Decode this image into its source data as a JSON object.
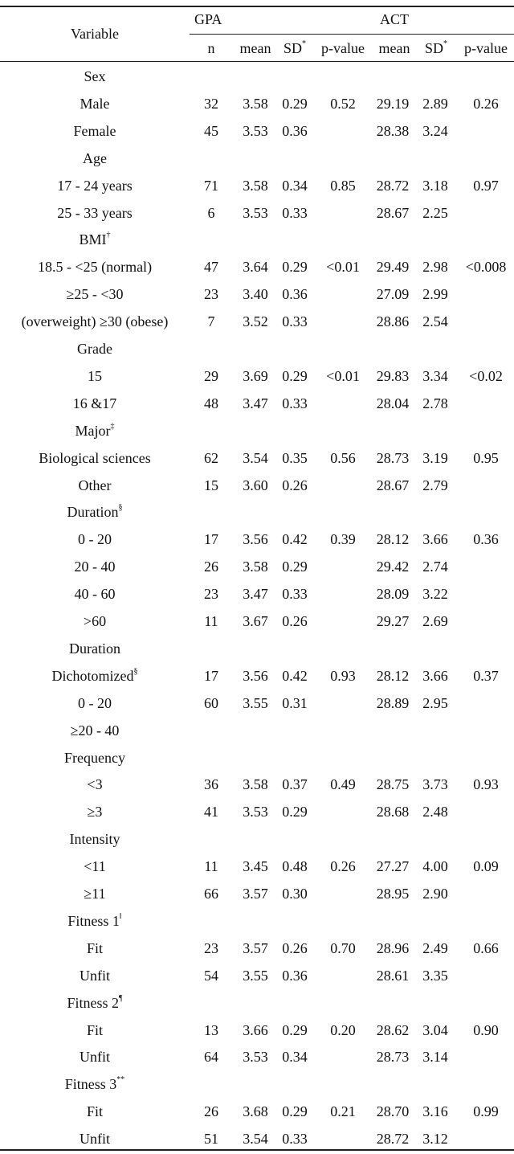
{
  "header": {
    "variable": "Variable",
    "gpa_group": "GPA",
    "act_group": "ACT",
    "n": "n",
    "gpa_mean": "mean",
    "gpa_sd": "SD",
    "gpa_sd_mark": "*",
    "gpa_p": "p-value",
    "act_mean": "mean",
    "act_sd": "SD",
    "act_sd_mark": "*",
    "act_p": "p-value"
  },
  "rows": [
    {
      "label": "Sex",
      "sup": "",
      "n": "",
      "gm": "",
      "gs": "",
      "gp": "",
      "am": "",
      "as": "",
      "ap": ""
    },
    {
      "label": "Male",
      "sup": "",
      "n": "32",
      "gm": "3.58",
      "gs": "0.29",
      "gp": "0.52",
      "am": "29.19",
      "as": "2.89",
      "ap": "0.26"
    },
    {
      "label": "Female",
      "sup": "",
      "n": "45",
      "gm": "3.53",
      "gs": "0.36",
      "gp": "",
      "am": "28.38",
      "as": "3.24",
      "ap": ""
    },
    {
      "label": "Age",
      "sup": "",
      "n": "",
      "gm": "",
      "gs": "",
      "gp": "",
      "am": "",
      "as": "",
      "ap": ""
    },
    {
      "label": "17 - 24 years",
      "sup": "",
      "n": "71",
      "gm": "3.58",
      "gs": "0.34",
      "gp": "0.85",
      "am": "28.72",
      "as": "3.18",
      "ap": "0.97"
    },
    {
      "label": "25 - 33 years",
      "sup": "",
      "n": "6",
      "gm": "3.53",
      "gs": "0.33",
      "gp": "",
      "am": "28.67",
      "as": "2.25",
      "ap": ""
    },
    {
      "label": "BMI",
      "sup": "†",
      "n": "",
      "gm": "",
      "gs": "",
      "gp": "",
      "am": "",
      "as": "",
      "ap": ""
    },
    {
      "label": "18.5 - <25 (normal)",
      "sup": "",
      "n": "47",
      "gm": "3.64",
      "gs": "0.29",
      "gp": "<0.01",
      "am": "29.49",
      "as": "2.98",
      "ap": "<0.008"
    },
    {
      "label": "≥25 - <30",
      "sup": "",
      "n": "23",
      "gm": "3.40",
      "gs": "0.36",
      "gp": "",
      "am": "27.09",
      "as": "2.99",
      "ap": ""
    },
    {
      "label": "(overweight) ≥30 (obese)",
      "sup": "",
      "n": "7",
      "gm": "3.52",
      "gs": "0.33",
      "gp": "",
      "am": "28.86",
      "as": "2.54",
      "ap": ""
    },
    {
      "label": "Grade",
      "sup": "",
      "n": "",
      "gm": "",
      "gs": "",
      "gp": "",
      "am": "",
      "as": "",
      "ap": ""
    },
    {
      "label": "15",
      "sup": "",
      "n": "29",
      "gm": "3.69",
      "gs": "0.29",
      "gp": "<0.01",
      "am": "29.83",
      "as": "3.34",
      "ap": "<0.02"
    },
    {
      "label": "16 &17",
      "sup": "",
      "n": "48",
      "gm": "3.47",
      "gs": "0.33",
      "gp": "",
      "am": "28.04",
      "as": "2.78",
      "ap": ""
    },
    {
      "label": "Major",
      "sup": "‡",
      "n": "",
      "gm": "",
      "gs": "",
      "gp": "",
      "am": "",
      "as": "",
      "ap": ""
    },
    {
      "label": "Biological sciences",
      "sup": "",
      "n": "62",
      "gm": "3.54",
      "gs": "0.35",
      "gp": "0.56",
      "am": "28.73",
      "as": "3.19",
      "ap": "0.95"
    },
    {
      "label": "Other",
      "sup": "",
      "n": "15",
      "gm": "3.60",
      "gs": "0.26",
      "gp": "",
      "am": "28.67",
      "as": "2.79",
      "ap": ""
    },
    {
      "label": "Duration",
      "sup": "§",
      "n": "",
      "gm": "",
      "gs": "",
      "gp": "",
      "am": "",
      "as": "",
      "ap": ""
    },
    {
      "label": "0 - 20",
      "sup": "",
      "n": "17",
      "gm": "3.56",
      "gs": "0.42",
      "gp": "0.39",
      "am": "28.12",
      "as": "3.66",
      "ap": "0.36"
    },
    {
      "label": "20 - 40",
      "sup": "",
      "n": "26",
      "gm": "3.58",
      "gs": "0.29",
      "gp": "",
      "am": "29.42",
      "as": "2.74",
      "ap": ""
    },
    {
      "label": "40 - 60",
      "sup": "",
      "n": "23",
      "gm": "3.47",
      "gs": "0.33",
      "gp": "",
      "am": "28.09",
      "as": "3.22",
      "ap": ""
    },
    {
      "label": ">60",
      "sup": "",
      "n": "11",
      "gm": "3.67",
      "gs": "0.26",
      "gp": "",
      "am": "29.27",
      "as": "2.69",
      "ap": ""
    },
    {
      "label": "Duration",
      "sup": "",
      "n": "",
      "gm": "",
      "gs": "",
      "gp": "",
      "am": "",
      "as": "",
      "ap": ""
    },
    {
      "label": "Dichotomized",
      "sup": "§",
      "n": "17",
      "gm": "3.56",
      "gs": "0.42",
      "gp": "0.93",
      "am": "28.12",
      "as": "3.66",
      "ap": "0.37"
    },
    {
      "label": "0 - 20",
      "sup": "",
      "n": "60",
      "gm": "3.55",
      "gs": "0.31",
      "gp": "",
      "am": "28.89",
      "as": "2.95",
      "ap": ""
    },
    {
      "label": "≥20 - 40",
      "sup": "",
      "n": "",
      "gm": "",
      "gs": "",
      "gp": "",
      "am": "",
      "as": "",
      "ap": ""
    },
    {
      "label": "Frequency",
      "sup": "",
      "n": "",
      "gm": "",
      "gs": "",
      "gp": "",
      "am": "",
      "as": "",
      "ap": ""
    },
    {
      "label": "<3",
      "sup": "",
      "n": "36",
      "gm": "3.58",
      "gs": "0.37",
      "gp": "0.49",
      "am": "28.75",
      "as": "3.73",
      "ap": "0.93"
    },
    {
      "label": "≥3",
      "sup": "",
      "n": "41",
      "gm": "3.53",
      "gs": "0.29",
      "gp": "",
      "am": "28.68",
      "as": "2.48",
      "ap": ""
    },
    {
      "label": "Intensity",
      "sup": "",
      "n": "",
      "gm": "",
      "gs": "",
      "gp": "",
      "am": "",
      "as": "",
      "ap": ""
    },
    {
      "label": "<11",
      "sup": "",
      "n": "11",
      "gm": "3.45",
      "gs": "0.48",
      "gp": "0.26",
      "am": "27.27",
      "as": "4.00",
      "ap": "0.09"
    },
    {
      "label": "≥11",
      "sup": "",
      "n": "66",
      "gm": "3.57",
      "gs": "0.30",
      "gp": "",
      "am": "28.95",
      "as": "2.90",
      "ap": ""
    },
    {
      "label": "Fitness 1",
      "sup": "‖",
      "n": "",
      "gm": "",
      "gs": "",
      "gp": "",
      "am": "",
      "as": "",
      "ap": ""
    },
    {
      "label": "Fit",
      "sup": "",
      "n": "23",
      "gm": "3.57",
      "gs": "0.26",
      "gp": "0.70",
      "am": "28.96",
      "as": "2.49",
      "ap": "0.66"
    },
    {
      "label": "Unfit",
      "sup": "",
      "n": "54",
      "gm": "3.55",
      "gs": "0.36",
      "gp": "",
      "am": "28.61",
      "as": "3.35",
      "ap": ""
    },
    {
      "label": "Fitness 2",
      "sup": "¶",
      "n": "",
      "gm": "",
      "gs": "",
      "gp": "",
      "am": "",
      "as": "",
      "ap": ""
    },
    {
      "label": "Fit",
      "sup": "",
      "n": "13",
      "gm": "3.66",
      "gs": "0.29",
      "gp": "0.20",
      "am": "28.62",
      "as": "3.04",
      "ap": "0.90"
    },
    {
      "label": "Unfit",
      "sup": "",
      "n": "64",
      "gm": "3.53",
      "gs": "0.34",
      "gp": "",
      "am": "28.73",
      "as": "3.14",
      "ap": ""
    },
    {
      "label": "Fitness 3",
      "sup": "**",
      "n": "",
      "gm": "",
      "gs": "",
      "gp": "",
      "am": "",
      "as": "",
      "ap": ""
    },
    {
      "label": "Fit",
      "sup": "",
      "n": "26",
      "gm": "3.68",
      "gs": "0.29",
      "gp": "0.21",
      "am": "28.70",
      "as": "3.16",
      "ap": "0.99"
    },
    {
      "label": "Unfit",
      "sup": "",
      "n": "51",
      "gm": "3.54",
      "gs": "0.33",
      "gp": "",
      "am": "28.72",
      "as": "3.12",
      "ap": ""
    }
  ]
}
